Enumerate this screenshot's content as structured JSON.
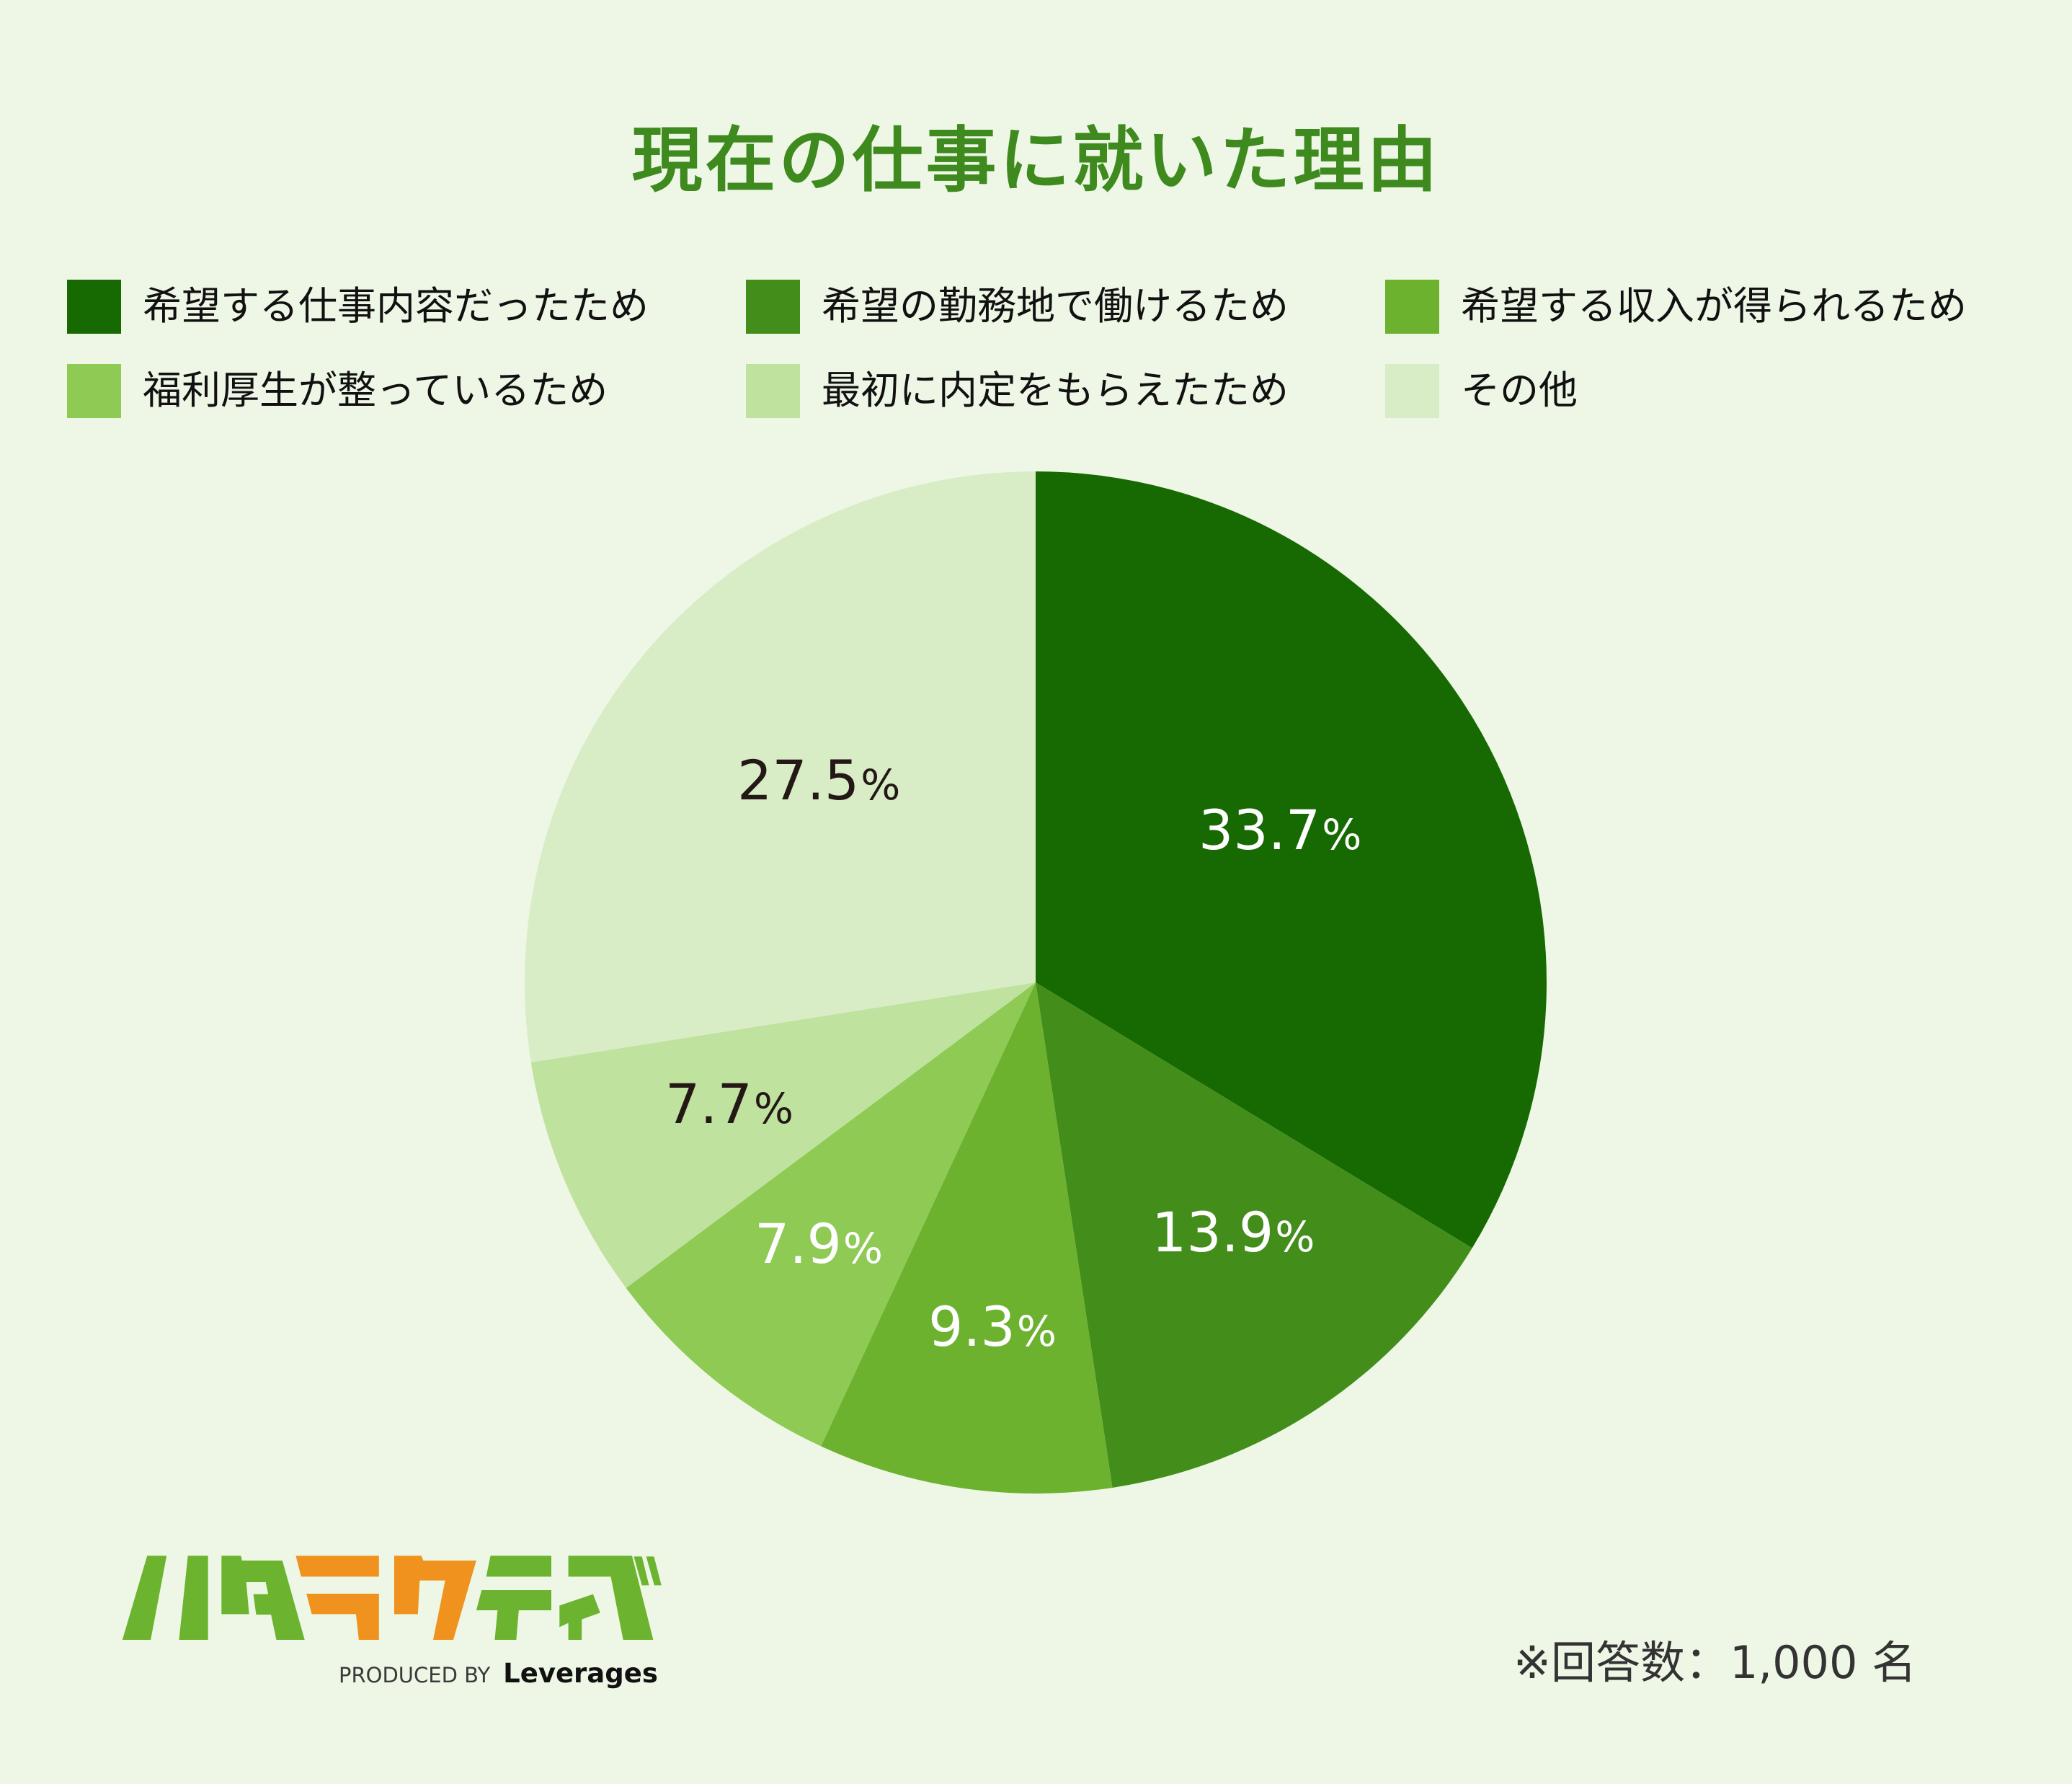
{
  "title": "現在の仕事に就いた理由",
  "legend": [
    {
      "label": "希望する仕事内容だったため",
      "color": "#176a02"
    },
    {
      "label": "希望の勤務地で働けるため",
      "color": "#438e1b"
    },
    {
      "label": "希望する収入が得られるため",
      "color": "#6cb22f"
    },
    {
      "label": "福利厚生が整っているため",
      "color": "#8fca55"
    },
    {
      "label": "最初に内定をもらえたため",
      "color": "#bfe29e"
    },
    {
      "label": "その他",
      "color": "#d8edc6"
    }
  ],
  "slices": [
    {
      "value": "33.7",
      "unit": "%"
    },
    {
      "value": "13.9",
      "unit": "%"
    },
    {
      "value": "9.3",
      "unit": "%"
    },
    {
      "value": "7.9",
      "unit": "%"
    },
    {
      "value": "7.7",
      "unit": "%"
    },
    {
      "value": "27.5",
      "unit": "%"
    }
  ],
  "logo": {
    "brand": "ハタラクティブ",
    "produced_by": "PRODUCED BY",
    "company": "Leverages",
    "green": "#6cb42f",
    "orange": "#f0931e"
  },
  "footnote": "※回答数：1,000 名",
  "chart_data": {
    "type": "pie",
    "title": "現在の仕事に就いた理由",
    "categories": [
      "希望する仕事内容だったため",
      "希望の勤務地で働けるため",
      "希望する収入が得られるため",
      "福利厚生が整っているため",
      "最初に内定をもらえたため",
      "その他"
    ],
    "values": [
      33.7,
      13.9,
      9.3,
      7.9,
      7.7,
      27.5
    ],
    "unit": "%",
    "colors": [
      "#176a02",
      "#438e1b",
      "#6cb22f",
      "#8fca55",
      "#bfe29e",
      "#d8edc6"
    ],
    "start_angle": "12 o'clock",
    "direction": "clockwise",
    "legend_position": "top",
    "note": "※回答数：1,000 名"
  }
}
